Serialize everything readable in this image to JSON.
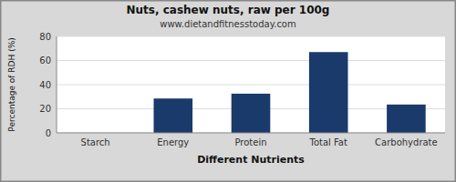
{
  "chart_data": {
    "type": "bar",
    "title": "Nuts, cashew nuts, raw per 100g",
    "subtitle": "www.dietandfitnesstoday.com",
    "categories": [
      "Starch",
      "Energy",
      "Protein",
      "Total Fat",
      "Carbohydrate"
    ],
    "values": [
      0,
      28.5,
      32.5,
      67,
      23.5
    ],
    "color": "#1a3a6b",
    "xlabel": "Different Nutrients",
    "ylabel": "Percentage of RDH (%)",
    "ylim": [
      0,
      80
    ],
    "yticks": [
      0,
      20,
      40,
      60,
      80
    ],
    "grid": true
  }
}
